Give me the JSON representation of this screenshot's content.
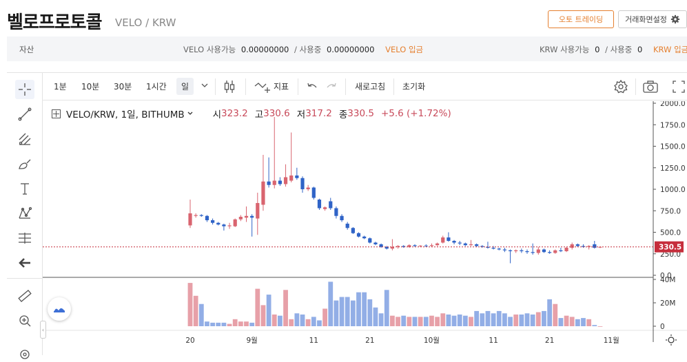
{
  "header": {
    "title": "벨로프로토콜",
    "subtitle": "VELO / KRW",
    "auto_trade_label": "오토 트레이딩",
    "layout_settings_label": "거래화면설정"
  },
  "asset_bar": {
    "label": "자산",
    "velo": {
      "available_label": "VELO 사용가능",
      "available_value": "0.00000000",
      "in_use_label": "/ 사용중",
      "in_use_value": "0.00000000",
      "deposit_label": "VELO 입금"
    },
    "krw": {
      "available_label": "KRW 사용가능",
      "available_value": "0",
      "in_use_label": "/ 사용중",
      "in_use_value": "0",
      "deposit_label": "KRW 입금"
    }
  },
  "toolbar": {
    "intervals": [
      "1분",
      "10분",
      "30분",
      "1시간"
    ],
    "selected_interval": "일",
    "indicator_label": "지표",
    "refresh_label": "새로고침",
    "reset_label": "초기화"
  },
  "legend": {
    "symbol": "VELO/KRW, 1일, BITHUMB",
    "open_label": "시",
    "open": "323.2",
    "high_label": "고",
    "high": "330.6",
    "low_label": "저",
    "low": "317.2",
    "close_label": "종",
    "close": "330.5",
    "change": "+5.6 (+1.72%)"
  },
  "colors": {
    "up": "#d9646f",
    "down": "#2f63c7",
    "vol_up": "#e7a0a8",
    "vol_down": "#92aee6",
    "accent": "#e57f2e",
    "last_price": "#c62e3c"
  },
  "chart_data": {
    "type": "candlestick",
    "last_price": 330.5,
    "price_axis_ticks": [
      "2000.0",
      "1750.0",
      "1500.0",
      "1250.0",
      "1000.0",
      "750.0",
      "500.0",
      "250.0",
      "0.0"
    ],
    "volume_axis_ticks": [
      "40M",
      "20M",
      "0"
    ],
    "x_tick_labels": [
      "20",
      "9월",
      "11",
      "21",
      "10월",
      "11",
      "21",
      "11월"
    ],
    "x_tick_days": [
      0,
      11,
      22,
      32,
      43,
      54,
      64,
      75
    ],
    "price_range": [
      0,
      2000
    ],
    "volume_range": [
      0,
      40
    ],
    "candles": [
      {
        "d": 0,
        "o": 580,
        "h": 880,
        "l": 550,
        "c": 720
      },
      {
        "d": 1,
        "o": 690,
        "h": 720,
        "l": 670,
        "c": 700
      },
      {
        "d": 2,
        "o": 700,
        "h": 710,
        "l": 680,
        "c": 690
      },
      {
        "d": 3,
        "o": 690,
        "h": 700,
        "l": 620,
        "c": 640
      },
      {
        "d": 4,
        "o": 640,
        "h": 660,
        "l": 590,
        "c": 610
      },
      {
        "d": 5,
        "o": 610,
        "h": 620,
        "l": 580,
        "c": 590
      },
      {
        "d": 6,
        "o": 590,
        "h": 600,
        "l": 520,
        "c": 570
      },
      {
        "d": 7,
        "o": 570,
        "h": 610,
        "l": 540,
        "c": 580
      },
      {
        "d": 8,
        "o": 570,
        "h": 660,
        "l": 560,
        "c": 650
      },
      {
        "d": 9,
        "o": 650,
        "h": 700,
        "l": 630,
        "c": 680
      },
      {
        "d": 10,
        "o": 670,
        "h": 800,
        "l": 620,
        "c": 690
      },
      {
        "d": 11,
        "o": 690,
        "h": 710,
        "l": 450,
        "c": 670
      },
      {
        "d": 12,
        "o": 660,
        "h": 960,
        "l": 470,
        "c": 840
      },
      {
        "d": 13,
        "o": 820,
        "h": 1400,
        "l": 750,
        "c": 1090
      },
      {
        "d": 14,
        "o": 1090,
        "h": 1370,
        "l": 1020,
        "c": 1050
      },
      {
        "d": 15,
        "o": 1050,
        "h": 1840,
        "l": 1010,
        "c": 1100
      },
      {
        "d": 16,
        "o": 1100,
        "h": 1140,
        "l": 1040,
        "c": 1060
      },
      {
        "d": 17,
        "o": 1060,
        "h": 1290,
        "l": 1030,
        "c": 1140
      },
      {
        "d": 18,
        "o": 1100,
        "h": 1660,
        "l": 1080,
        "c": 1160
      },
      {
        "d": 19,
        "o": 1160,
        "h": 1250,
        "l": 1110,
        "c": 1130
      },
      {
        "d": 20,
        "o": 1130,
        "h": 1150,
        "l": 960,
        "c": 1000
      },
      {
        "d": 21,
        "o": 1000,
        "h": 1050,
        "l": 980,
        "c": 1020
      },
      {
        "d": 22,
        "o": 1020,
        "h": 1030,
        "l": 880,
        "c": 900
      },
      {
        "d": 23,
        "o": 880,
        "h": 890,
        "l": 760,
        "c": 780
      },
      {
        "d": 24,
        "o": 770,
        "h": 800,
        "l": 750,
        "c": 790
      },
      {
        "d": 25,
        "o": 860,
        "h": 900,
        "l": 760,
        "c": 780
      },
      {
        "d": 26,
        "o": 780,
        "h": 800,
        "l": 660,
        "c": 690
      },
      {
        "d": 27,
        "o": 690,
        "h": 710,
        "l": 620,
        "c": 640
      },
      {
        "d": 28,
        "o": 600,
        "h": 620,
        "l": 530,
        "c": 550
      },
      {
        "d": 29,
        "o": 550,
        "h": 560,
        "l": 480,
        "c": 490
      },
      {
        "d": 30,
        "o": 490,
        "h": 500,
        "l": 440,
        "c": 450
      },
      {
        "d": 31,
        "o": 450,
        "h": 460,
        "l": 420,
        "c": 430
      },
      {
        "d": 32,
        "o": 430,
        "h": 440,
        "l": 370,
        "c": 380
      },
      {
        "d": 33,
        "o": 380,
        "h": 390,
        "l": 350,
        "c": 360
      },
      {
        "d": 34,
        "o": 360,
        "h": 370,
        "l": 320,
        "c": 330
      },
      {
        "d": 35,
        "o": 330,
        "h": 340,
        "l": 300,
        "c": 310
      },
      {
        "d": 36,
        "o": 310,
        "h": 420,
        "l": 290,
        "c": 330
      },
      {
        "d": 37,
        "o": 330,
        "h": 350,
        "l": 310,
        "c": 340
      },
      {
        "d": 38,
        "o": 340,
        "h": 350,
        "l": 320,
        "c": 330
      },
      {
        "d": 39,
        "o": 330,
        "h": 360,
        "l": 320,
        "c": 350
      },
      {
        "d": 40,
        "o": 350,
        "h": 360,
        "l": 330,
        "c": 340
      },
      {
        "d": 41,
        "o": 340,
        "h": 350,
        "l": 330,
        "c": 345
      },
      {
        "d": 42,
        "o": 345,
        "h": 360,
        "l": 330,
        "c": 340
      },
      {
        "d": 43,
        "o": 340,
        "h": 370,
        "l": 330,
        "c": 350
      },
      {
        "d": 44,
        "o": 350,
        "h": 380,
        "l": 340,
        "c": 370
      },
      {
        "d": 45,
        "o": 380,
        "h": 460,
        "l": 370,
        "c": 440
      },
      {
        "d": 46,
        "o": 440,
        "h": 500,
        "l": 390,
        "c": 400
      },
      {
        "d": 47,
        "o": 400,
        "h": 410,
        "l": 360,
        "c": 380
      },
      {
        "d": 48,
        "o": 380,
        "h": 400,
        "l": 350,
        "c": 370
      },
      {
        "d": 49,
        "o": 370,
        "h": 380,
        "l": 340,
        "c": 350
      },
      {
        "d": 50,
        "o": 350,
        "h": 410,
        "l": 340,
        "c": 360
      },
      {
        "d": 51,
        "o": 360,
        "h": 370,
        "l": 330,
        "c": 340
      },
      {
        "d": 52,
        "o": 340,
        "h": 350,
        "l": 320,
        "c": 330
      },
      {
        "d": 53,
        "o": 330,
        "h": 390,
        "l": 310,
        "c": 320
      },
      {
        "d": 54,
        "o": 320,
        "h": 340,
        "l": 300,
        "c": 310
      },
      {
        "d": 55,
        "o": 310,
        "h": 320,
        "l": 290,
        "c": 300
      },
      {
        "d": 56,
        "o": 300,
        "h": 320,
        "l": 270,
        "c": 290
      },
      {
        "d": 57,
        "o": 290,
        "h": 300,
        "l": 140,
        "c": 280
      },
      {
        "d": 58,
        "o": 280,
        "h": 300,
        "l": 260,
        "c": 290
      },
      {
        "d": 59,
        "o": 290,
        "h": 310,
        "l": 260,
        "c": 280
      },
      {
        "d": 60,
        "o": 280,
        "h": 300,
        "l": 250,
        "c": 270
      },
      {
        "d": 61,
        "o": 270,
        "h": 370,
        "l": 240,
        "c": 260
      },
      {
        "d": 62,
        "o": 260,
        "h": 330,
        "l": 240,
        "c": 300
      },
      {
        "d": 63,
        "o": 300,
        "h": 310,
        "l": 260,
        "c": 270
      },
      {
        "d": 64,
        "o": 270,
        "h": 290,
        "l": 250,
        "c": 260
      },
      {
        "d": 65,
        "o": 260,
        "h": 300,
        "l": 250,
        "c": 290
      },
      {
        "d": 66,
        "o": 290,
        "h": 320,
        "l": 270,
        "c": 280
      },
      {
        "d": 67,
        "o": 280,
        "h": 330,
        "l": 270,
        "c": 320
      },
      {
        "d": 68,
        "o": 320,
        "h": 380,
        "l": 300,
        "c": 360
      },
      {
        "d": 69,
        "o": 360,
        "h": 370,
        "l": 330,
        "c": 340
      },
      {
        "d": 70,
        "o": 340,
        "h": 360,
        "l": 320,
        "c": 330
      },
      {
        "d": 71,
        "o": 330,
        "h": 350,
        "l": 300,
        "c": 340
      },
      {
        "d": 72,
        "o": 360,
        "h": 400,
        "l": 310,
        "c": 320
      },
      {
        "d": 73,
        "o": 323,
        "h": 331,
        "l": 317,
        "c": 330
      }
    ],
    "volumes": [
      37,
      26,
      19,
      4,
      3,
      3,
      3,
      2,
      6,
      4,
      4,
      3,
      32,
      18,
      27,
      10,
      9,
      31,
      6,
      11,
      10,
      6,
      8,
      5,
      15,
      38,
      22,
      25,
      25,
      22,
      29,
      29,
      23,
      16,
      11,
      31,
      9,
      8,
      9,
      8,
      8,
      8,
      8,
      9,
      8,
      11,
      10,
      9,
      10,
      9,
      8,
      13,
      11,
      13,
      11,
      13,
      11,
      8,
      10,
      10,
      11,
      10,
      12,
      13,
      23,
      19,
      7,
      9,
      8,
      6,
      7,
      6,
      1,
      0
    ]
  }
}
